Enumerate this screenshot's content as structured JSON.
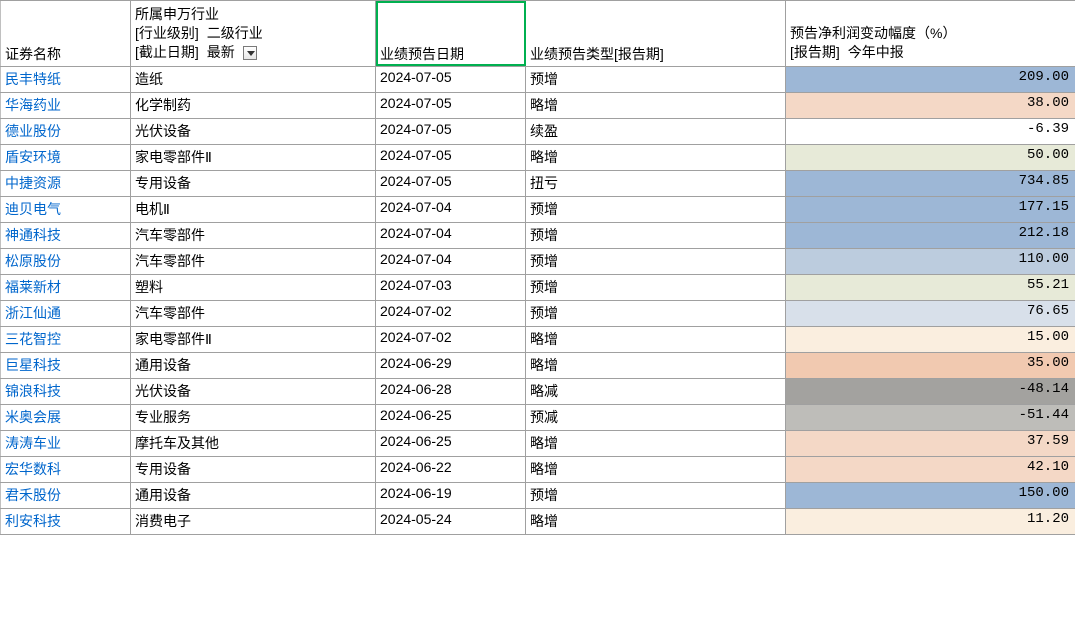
{
  "headers": {
    "col0": "证券名称",
    "col1": {
      "line1": "所属申万行业",
      "line2_tag": "[行业级别]",
      "line2_val": "二级行业",
      "line3_tag": "[截止日期]",
      "line3_val": "最新"
    },
    "col2": "业绩预告日期",
    "col3": "业绩预告类型[报告期]",
    "col4": {
      "line1": "预告净利润变动幅度（%）",
      "line2_tag": "[报告期]",
      "line2_val": "今年中报"
    }
  },
  "colors": {
    "blue_dark": "#9db7d6",
    "blue_mid": "#bcccde",
    "blue_light": "#d8e0ea",
    "peach_dark": "#f1c9b0",
    "peach_mid": "#f4d8c6",
    "peach_light": "#faeedf",
    "green_light": "#e7ead8",
    "gray_dark": "#a3a29f",
    "gray_mid": "#bebdb9",
    "link": "#0066cc",
    "grid": "#a0a0a0",
    "active_border": "#00b050"
  },
  "rows": [
    {
      "name": "民丰特纸",
      "industry": "造纸",
      "date": "2024-07-05",
      "type": "预增",
      "value": "209.00",
      "bg": "#9db7d6"
    },
    {
      "name": "华海药业",
      "industry": "化学制药",
      "date": "2024-07-05",
      "type": "略增",
      "value": "38.00",
      "bg": "#f4d8c6"
    },
    {
      "name": "德业股份",
      "industry": "光伏设备",
      "date": "2024-07-05",
      "type": "续盈",
      "value": "-6.39",
      "bg": "#ffffff"
    },
    {
      "name": "盾安环境",
      "industry": "家电零部件Ⅱ",
      "date": "2024-07-05",
      "type": "略增",
      "value": "50.00",
      "bg": "#e7ead8"
    },
    {
      "name": "中捷资源",
      "industry": "专用设备",
      "date": "2024-07-05",
      "type": "扭亏",
      "value": "734.85",
      "bg": "#9db7d6"
    },
    {
      "name": "迪贝电气",
      "industry": "电机Ⅱ",
      "date": "2024-07-04",
      "type": "预增",
      "value": "177.15",
      "bg": "#9db7d6"
    },
    {
      "name": "神通科技",
      "industry": "汽车零部件",
      "date": "2024-07-04",
      "type": "预增",
      "value": "212.18",
      "bg": "#9db7d6"
    },
    {
      "name": "松原股份",
      "industry": "汽车零部件",
      "date": "2024-07-04",
      "type": "预增",
      "value": "110.00",
      "bg": "#bcccde"
    },
    {
      "name": "福莱新材",
      "industry": "塑料",
      "date": "2024-07-03",
      "type": "预增",
      "value": "55.21",
      "bg": "#e7ead8"
    },
    {
      "name": "浙江仙通",
      "industry": "汽车零部件",
      "date": "2024-07-02",
      "type": "预增",
      "value": "76.65",
      "bg": "#d8e0ea"
    },
    {
      "name": "三花智控",
      "industry": "家电零部件Ⅱ",
      "date": "2024-07-02",
      "type": "略增",
      "value": "15.00",
      "bg": "#faeedf"
    },
    {
      "name": "巨星科技",
      "industry": "通用设备",
      "date": "2024-06-29",
      "type": "略增",
      "value": "35.00",
      "bg": "#f1c9b0"
    },
    {
      "name": "锦浪科技",
      "industry": "光伏设备",
      "date": "2024-06-28",
      "type": "略减",
      "value": "-48.14",
      "bg": "#a3a29f"
    },
    {
      "name": "米奥会展",
      "industry": "专业服务",
      "date": "2024-06-25",
      "type": "预减",
      "value": "-51.44",
      "bg": "#bebdb9"
    },
    {
      "name": "涛涛车业",
      "industry": "摩托车及其他",
      "date": "2024-06-25",
      "type": "略增",
      "value": "37.59",
      "bg": "#f4d8c6"
    },
    {
      "name": "宏华数科",
      "industry": "专用设备",
      "date": "2024-06-22",
      "type": "略增",
      "value": "42.10",
      "bg": "#f4d8c6"
    },
    {
      "name": "君禾股份",
      "industry": "通用设备",
      "date": "2024-06-19",
      "type": "预增",
      "value": "150.00",
      "bg": "#9db7d6"
    },
    {
      "name": "利安科技",
      "industry": "消费电子",
      "date": "2024-05-24",
      "type": "略增",
      "value": "11.20",
      "bg": "#faeedf"
    }
  ]
}
